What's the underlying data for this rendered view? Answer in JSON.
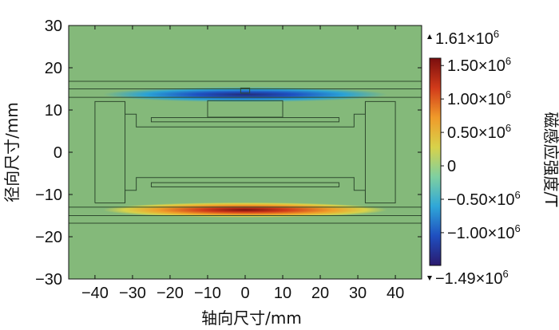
{
  "chart_data": {
    "type": "heatmap",
    "title": "",
    "xlabel": "轴向尺寸/mm",
    "ylabel": "径向尺寸/mm",
    "xlim": [
      -47,
      47
    ],
    "ylim": [
      -30,
      30
    ],
    "x_ticks": [
      "−40",
      "−30",
      "−20",
      "−10",
      "0",
      "10",
      "20",
      "30",
      "40"
    ],
    "x_tick_values": [
      -40,
      -30,
      -20,
      -10,
      0,
      10,
      20,
      30,
      40
    ],
    "y_ticks": [
      "30",
      "20",
      "10",
      "0",
      "−10",
      "−20",
      "−30"
    ],
    "y_tick_values": [
      30,
      20,
      10,
      0,
      -10,
      -20,
      -30
    ],
    "colorbar": {
      "title": "磁感应强度/T",
      "max_label": "1.61×10",
      "max_exp": "6",
      "min_label": "−1.49×10",
      "min_exp": "6",
      "range": [
        -1490000,
        1610000
      ],
      "tick_values": [
        1500000,
        1000000,
        500000,
        0,
        -500000,
        -1000000
      ],
      "ticks": [
        {
          "base": "1.50×10",
          "exp": "6"
        },
        {
          "base": "1.00×10",
          "exp": "6"
        },
        {
          "base": "0.50×10",
          "exp": "6"
        },
        {
          "base": "0",
          "exp": ""
        },
        {
          "base": "−0.50×10",
          "exp": "6"
        },
        {
          "base": "−1.00×10",
          "exp": "6"
        }
      ],
      "colors": [
        "#2a1a6e",
        "#1f4fc0",
        "#2fa7d8",
        "#7fd0a0",
        "#d8d24a",
        "#f09a2a",
        "#d13a1a",
        "#7a0e0e"
      ]
    },
    "field_bands": [
      {
        "name": "upper gap band",
        "y_range": [
          12.8,
          14.5
        ],
        "x_range": [
          -37,
          37
        ],
        "sign": "negative",
        "peak_value": -1490000
      },
      {
        "name": "lower gap band",
        "y_range": [
          -14.5,
          -12.8
        ],
        "x_range": [
          -37,
          37
        ],
        "sign": "positive",
        "peak_value": 1610000
      }
    ],
    "background_value": 0,
    "background_color": "#84b97a"
  }
}
